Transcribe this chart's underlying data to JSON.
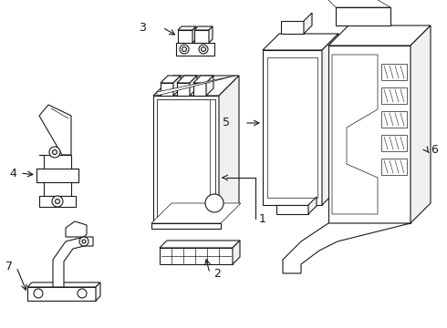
{
  "background_color": "#ffffff",
  "line_color": "#1a1a1a",
  "line_width": 0.8,
  "fig_width": 4.9,
  "fig_height": 3.6,
  "dpi": 100
}
